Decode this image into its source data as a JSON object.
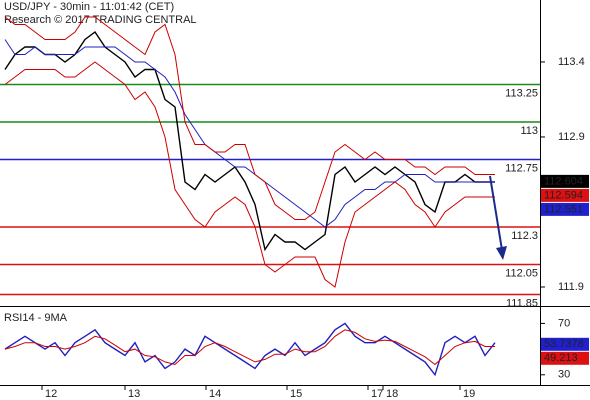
{
  "chart_data": [
    {
      "type": "line",
      "title": "USD/JPY - 30min - 11:01:42 (CET)",
      "subtitle": "Research © 2017 TRADING CENTRAL",
      "x": [
        0.5,
        1.5,
        2.5,
        3.5,
        4.5,
        5.5,
        6.5,
        7.5,
        8.5,
        9.5,
        10.5,
        11.5,
        12.5,
        13.5,
        14.5,
        15.5,
        16.5,
        17.5,
        18.5,
        19.5,
        20.5,
        21.5,
        22.5,
        23.5,
        24.5,
        25.5,
        26.5,
        27.5,
        28.5,
        29.5,
        30.5,
        31.5,
        32.5,
        33.5,
        34.5,
        35.5,
        36.5,
        37.5,
        38.5,
        39.5,
        40.5,
        41.5,
        42.5,
        43.5,
        44.5,
        45.5,
        46.5,
        47.5,
        48.5,
        49.5
      ],
      "xlim": [
        0,
        54
      ],
      "ylim": [
        111.78,
        113.813
      ],
      "yticks": [
        113.4,
        112.9,
        111.9
      ],
      "series": [
        {
          "color": "#000000",
          "values": [
            113.35,
            113.45,
            113.5,
            113.5,
            113.45,
            113.45,
            113.4,
            113.45,
            113.55,
            113.6,
            113.5,
            113.45,
            113.4,
            113.3,
            113.35,
            113.35,
            113.15,
            113.1,
            112.6,
            112.55,
            112.65,
            112.6,
            112.65,
            112.7,
            112.6,
            112.45,
            112.15,
            112.25,
            112.2,
            112.2,
            112.15,
            112.2,
            112.25,
            112.65,
            112.7,
            112.6,
            112.65,
            112.7,
            112.65,
            112.7,
            112.65,
            112.6,
            112.45,
            112.4,
            112.6,
            112.6,
            112.65,
            112.6,
            112.6,
            112.6
          ]
        },
        {
          "color": "#2020c0",
          "values": [
            113.55,
            113.45,
            113.45,
            113.5,
            113.45,
            113.45,
            113.45,
            113.45,
            113.5,
            113.5,
            113.5,
            113.5,
            113.45,
            113.4,
            113.4,
            113.35,
            113.3,
            113.2,
            113.05,
            112.95,
            112.85,
            112.8,
            112.75,
            112.7,
            112.7,
            112.65,
            112.6,
            112.55,
            112.5,
            112.45,
            112.4,
            112.35,
            112.3,
            112.35,
            112.45,
            112.5,
            112.55,
            112.55,
            112.6,
            112.6,
            112.65,
            112.65,
            112.65,
            112.6,
            112.6,
            112.6,
            112.6,
            112.6,
            112.6,
            112.6
          ]
        },
        {
          "color": "#cc0000",
          "values": [
            113.7,
            113.65,
            113.65,
            113.6,
            113.55,
            113.55,
            113.55,
            113.6,
            113.7,
            113.7,
            113.65,
            113.6,
            113.55,
            113.5,
            113.45,
            113.6,
            113.65,
            113.45,
            113.0,
            112.85,
            112.85,
            112.8,
            112.8,
            112.85,
            112.85,
            112.65,
            112.6,
            112.45,
            112.4,
            112.35,
            112.35,
            112.4,
            112.6,
            112.8,
            112.85,
            112.8,
            112.75,
            112.8,
            112.75,
            112.75,
            112.75,
            112.7,
            112.7,
            112.65,
            112.7,
            112.7,
            112.7,
            112.65,
            112.65,
            112.65
          ]
        },
        {
          "color": "#cc0000",
          "values": [
            113.25,
            113.3,
            113.35,
            113.35,
            113.35,
            113.35,
            113.3,
            113.3,
            113.35,
            113.4,
            113.35,
            113.3,
            113.25,
            113.15,
            113.2,
            113.1,
            112.9,
            112.55,
            112.45,
            112.35,
            112.3,
            112.4,
            112.45,
            112.5,
            112.45,
            112.3,
            112.05,
            112.0,
            112.05,
            112.1,
            112.1,
            112.1,
            111.95,
            111.9,
            112.2,
            112.4,
            112.45,
            112.5,
            112.55,
            112.6,
            112.55,
            112.45,
            112.4,
            112.3,
            112.4,
            112.45,
            112.5,
            112.5,
            112.5,
            112.5
          ]
        }
      ],
      "levels": [
        {
          "value": 113.25,
          "color": "#1a8a1a"
        },
        {
          "value": 113,
          "color": "#1a8a1a"
        },
        {
          "value": 112.75,
          "color": "#2020d0"
        },
        {
          "value": 112.3,
          "color": "#dd1111"
        },
        {
          "value": 112.05,
          "color": "#dd1111"
        },
        {
          "value": 111.85,
          "color": "#dd1111"
        }
      ],
      "last_values": [
        {
          "value": 112.604,
          "color": "#000000"
        },
        {
          "value": 112.594,
          "color": "#dd1111"
        },
        {
          "value": 112.551,
          "color": "#2020d0"
        }
      ]
    },
    {
      "type": "line",
      "title": "RSI14 - 9MA",
      "x": [
        0.5,
        1.5,
        2.5,
        3.5,
        4.5,
        5.5,
        6.5,
        7.5,
        8.5,
        9.5,
        10.5,
        11.5,
        12.5,
        13.5,
        14.5,
        15.5,
        16.5,
        17.5,
        18.5,
        19.5,
        20.5,
        21.5,
        22.5,
        23.5,
        24.5,
        25.5,
        26.5,
        27.5,
        28.5,
        29.5,
        30.5,
        31.5,
        32.5,
        33.5,
        34.5,
        35.5,
        36.5,
        37.5,
        38.5,
        39.5,
        40.5,
        41.5,
        42.5,
        43.5,
        44.5,
        45.5,
        46.5,
        47.5,
        48.5,
        49.5
      ],
      "xlim": [
        0,
        54
      ],
      "xticks": [
        {
          "value": 4.2,
          "label": "12"
        },
        {
          "value": 12.5,
          "label": "13"
        },
        {
          "value": 20.6,
          "label": "14"
        },
        {
          "value": 28.7,
          "label": "15"
        },
        {
          "value": 36.8,
          "label": "17"
        },
        {
          "value": 38.3,
          "label": "18"
        },
        {
          "value": 46,
          "label": "19"
        }
      ],
      "ylim": [
        23.6,
        82
      ],
      "yticks": [
        70,
        30
      ],
      "series": [
        {
          "color": "#2020c0",
          "values": [
            50,
            55,
            60,
            55,
            50,
            55,
            45,
            55,
            60,
            65,
            55,
            50,
            45,
            55,
            40,
            45,
            35,
            40,
            50,
            45,
            60,
            55,
            50,
            45,
            40,
            35,
            45,
            50,
            45,
            55,
            45,
            50,
            55,
            65,
            70,
            60,
            55,
            55,
            60,
            55,
            50,
            45,
            40,
            30,
            55,
            60,
            55,
            60,
            45,
            55
          ]
        },
        {
          "color": "#cc0000",
          "values": [
            50,
            52,
            55,
            55,
            52,
            52,
            50,
            52,
            55,
            60,
            58,
            53,
            48,
            50,
            45,
            44,
            40,
            38,
            45,
            45,
            52,
            55,
            52,
            48,
            44,
            40,
            42,
            46,
            46,
            50,
            48,
            48,
            52,
            60,
            65,
            63,
            58,
            56,
            57,
            56,
            52,
            48,
            44,
            38,
            45,
            52,
            55,
            56,
            52,
            52
          ]
        }
      ],
      "last_values": [
        {
          "value": 53.7378,
          "color": "#2020d0"
        },
        {
          "value": 49.213,
          "color": "#dd1111"
        }
      ]
    }
  ]
}
